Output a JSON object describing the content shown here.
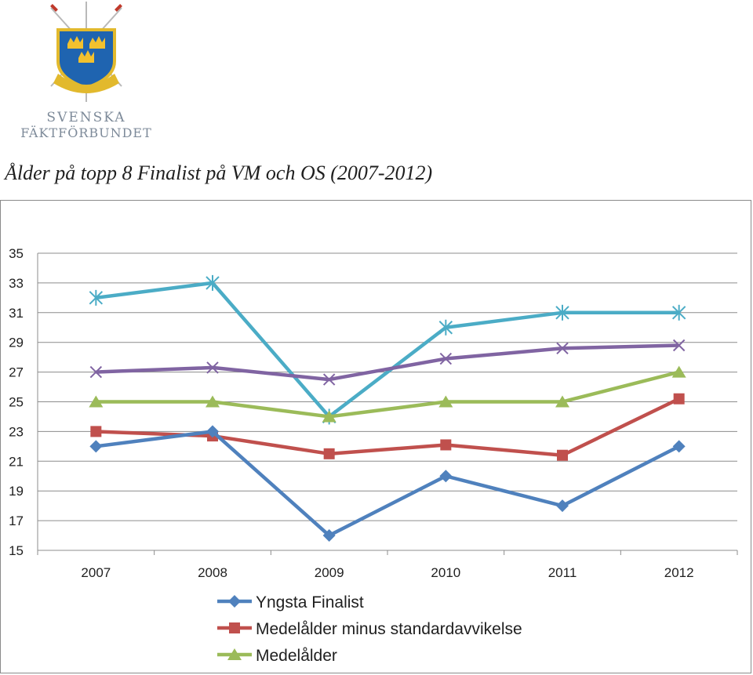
{
  "logo": {
    "line1": "SVENSKA",
    "line2": "FÄKTFÖRBUNDET",
    "icon": "crowns-shield-with-crossed-foils"
  },
  "chart_data": {
    "type": "line",
    "title": "Ålder på topp 8 Finalist på VM och OS (2007-2012)",
    "categories": [
      "2007",
      "2008",
      "2009",
      "2010",
      "2011",
      "2012"
    ],
    "ylim": [
      15,
      35
    ],
    "yticks": [
      "15",
      "17",
      "19",
      "21",
      "23",
      "25",
      "27",
      "29",
      "31",
      "33",
      "35"
    ],
    "grid": true,
    "legend_position": "bottom",
    "series": [
      {
        "name": "Yngsta Finalist",
        "values": [
          22,
          23,
          16,
          20,
          18,
          22
        ],
        "color": "#4f81bd",
        "marker": "diamond",
        "legend": true
      },
      {
        "name": "Medelålder minus standardavvikelse",
        "values": [
          23,
          22.7,
          21.5,
          22.1,
          21.4,
          25.2
        ],
        "color": "#c0504d",
        "marker": "square",
        "legend": true
      },
      {
        "name": "Medelålder",
        "values": [
          25,
          25,
          24,
          25,
          25,
          27
        ],
        "color": "#9bbb59",
        "marker": "triangle",
        "legend": true
      },
      {
        "values": [
          27,
          27.3,
          26.5,
          27.9,
          28.6,
          28.8
        ],
        "color": "#8064a2",
        "marker": "x",
        "legend": false
      },
      {
        "values": [
          32,
          33,
          24,
          30,
          31,
          31
        ],
        "color": "#4bacc6",
        "marker": "star",
        "legend": false
      }
    ]
  }
}
